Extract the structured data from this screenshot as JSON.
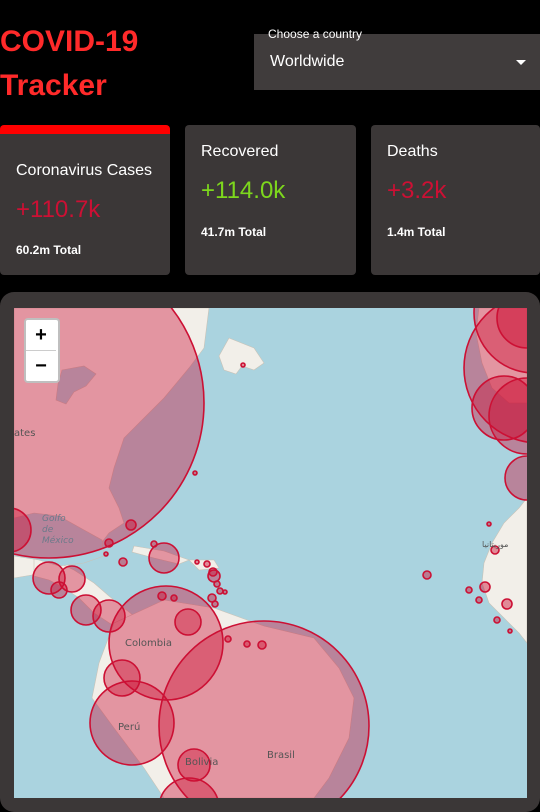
{
  "header": {
    "title_line1": "COVID-19",
    "title_line2": "Tracker"
  },
  "country_select": {
    "label": "Choose a country",
    "value": "Worldwide"
  },
  "cards": [
    {
      "title": "Coronavirus Cases",
      "new": "+110.7k",
      "total": "60.2m Total",
      "selected": true
    },
    {
      "title": "Recovered",
      "new": "+114.0k",
      "total": "41.7m Total",
      "selected": false
    },
    {
      "title": "Deaths",
      "new": "+3.2k",
      "total": "1.4m Total",
      "selected": false
    }
  ],
  "colors": {
    "accent": "#ff2a2a",
    "cases": "#cc1034",
    "recovered": "#7dd71d",
    "card_bg": "#3b3737",
    "ocean": "#aad3df",
    "land": "#f2efe9"
  },
  "map": {
    "zoom_in": "+",
    "zoom_out": "−",
    "labels": {
      "states": "ates",
      "gulf_line1": "Golfo",
      "gulf_line2": "de",
      "gulf_line3": "México",
      "colombia": "Colombia",
      "peru": "Perú",
      "brasil": "Brasil",
      "bolivia": "Bolivia",
      "mauritania": "موريتانيا"
    }
  }
}
